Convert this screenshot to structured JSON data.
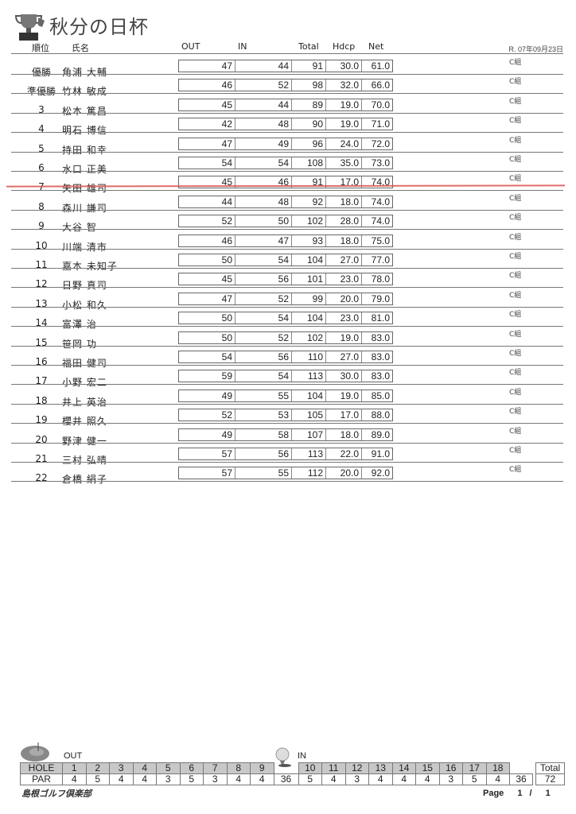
{
  "title": "秋分の日杯",
  "date": "R. 07年09月23日",
  "headers": {
    "rank": "順位",
    "name": "氏名",
    "out": "OUT",
    "in": "IN",
    "total": "Total",
    "hdcp": "Hdcp",
    "net": "Net"
  },
  "rows": [
    {
      "rank": "優勝",
      "name": "角浦 大輔",
      "out": "47",
      "in": "44",
      "total": "91",
      "hdcp": "30.0",
      "net": "61.0",
      "group": "C組"
    },
    {
      "rank": "準優勝",
      "name": "竹林 敏成",
      "out": "46",
      "in": "52",
      "total": "98",
      "hdcp": "32.0",
      "net": "66.0",
      "group": "C組"
    },
    {
      "rank": "3",
      "name": "松本 篤昌",
      "out": "45",
      "in": "44",
      "total": "89",
      "hdcp": "19.0",
      "net": "70.0",
      "group": "C組"
    },
    {
      "rank": "4",
      "name": "明石 博信",
      "out": "42",
      "in": "48",
      "total": "90",
      "hdcp": "19.0",
      "net": "71.0",
      "group": "C組"
    },
    {
      "rank": "5",
      "name": "持田 和幸",
      "out": "47",
      "in": "49",
      "total": "96",
      "hdcp": "24.0",
      "net": "72.0",
      "group": "C組"
    },
    {
      "rank": "6",
      "name": "水口 正美",
      "out": "54",
      "in": "54",
      "total": "108",
      "hdcp": "35.0",
      "net": "73.0",
      "group": "C組"
    },
    {
      "rank": "7",
      "name": "矢田 雄司",
      "out": "45",
      "in": "46",
      "total": "91",
      "hdcp": "17.0",
      "net": "74.0",
      "group": "C組"
    },
    {
      "rank": "8",
      "name": "森川 謙司",
      "out": "44",
      "in": "48",
      "total": "92",
      "hdcp": "18.0",
      "net": "74.0",
      "group": "C組"
    },
    {
      "rank": "9",
      "name": "大谷 智",
      "out": "52",
      "in": "50",
      "total": "102",
      "hdcp": "28.0",
      "net": "74.0",
      "group": "C組"
    },
    {
      "rank": "10",
      "name": "川端 清市",
      "out": "46",
      "in": "47",
      "total": "93",
      "hdcp": "18.0",
      "net": "75.0",
      "group": "C組"
    },
    {
      "rank": "11",
      "name": "嘉本 未知子",
      "out": "50",
      "in": "54",
      "total": "104",
      "hdcp": "27.0",
      "net": "77.0",
      "group": "C組"
    },
    {
      "rank": "12",
      "name": "日野 真司",
      "out": "45",
      "in": "56",
      "total": "101",
      "hdcp": "23.0",
      "net": "78.0",
      "group": "C組"
    },
    {
      "rank": "13",
      "name": "小松 和久",
      "out": "47",
      "in": "52",
      "total": "99",
      "hdcp": "20.0",
      "net": "79.0",
      "group": "C組"
    },
    {
      "rank": "14",
      "name": "富澤 治",
      "out": "50",
      "in": "54",
      "total": "104",
      "hdcp": "23.0",
      "net": "81.0",
      "group": "C組"
    },
    {
      "rank": "15",
      "name": "笹岡 功",
      "out": "50",
      "in": "52",
      "total": "102",
      "hdcp": "19.0",
      "net": "83.0",
      "group": "C組"
    },
    {
      "rank": "16",
      "name": "福田 健司",
      "out": "54",
      "in": "56",
      "total": "110",
      "hdcp": "27.0",
      "net": "83.0",
      "group": "C組"
    },
    {
      "rank": "17",
      "name": "小野 宏二",
      "out": "59",
      "in": "54",
      "total": "113",
      "hdcp": "30.0",
      "net": "83.0",
      "group": "C組"
    },
    {
      "rank": "18",
      "name": "井上 英治",
      "out": "49",
      "in": "55",
      "total": "104",
      "hdcp": "19.0",
      "net": "85.0",
      "group": "C組"
    },
    {
      "rank": "19",
      "name": "櫻井 照久",
      "out": "52",
      "in": "53",
      "total": "105",
      "hdcp": "17.0",
      "net": "88.0",
      "group": "C組"
    },
    {
      "rank": "20",
      "name": "野津 健一",
      "out": "49",
      "in": "58",
      "total": "107",
      "hdcp": "18.0",
      "net": "89.0",
      "group": "C組"
    },
    {
      "rank": "21",
      "name": "三村 弘晴",
      "out": "57",
      "in": "56",
      "total": "113",
      "hdcp": "22.0",
      "net": "91.0",
      "group": "C組"
    },
    {
      "rank": "22",
      "name": "倉橋 絹子",
      "out": "57",
      "in": "55",
      "total": "112",
      "hdcp": "20.0",
      "net": "92.0",
      "group": "C組"
    }
  ],
  "par_table": {
    "out_label": "OUT",
    "in_label": "IN",
    "hole_label": "HOLE",
    "par_label": "PAR",
    "total_label": "Total",
    "out_holes": [
      "1",
      "2",
      "3",
      "4",
      "5",
      "6",
      "7",
      "8",
      "9"
    ],
    "out_par": [
      "4",
      "5",
      "4",
      "4",
      "3",
      "5",
      "3",
      "4",
      "4"
    ],
    "out_total": "36",
    "in_holes": [
      "10",
      "11",
      "12",
      "13",
      "14",
      "15",
      "16",
      "17",
      "18"
    ],
    "in_par": [
      "5",
      "4",
      "3",
      "4",
      "4",
      "4",
      "3",
      "5",
      "4"
    ],
    "in_total": "36",
    "grand_total": "72"
  },
  "footer": {
    "club": "島根ゴルフ倶楽部",
    "page_label": "Page",
    "page": "1",
    "sep": "/",
    "pages": "1"
  },
  "colors": {
    "annotation_line": "#d9534f",
    "hole_shade": "#c8c8c8"
  }
}
